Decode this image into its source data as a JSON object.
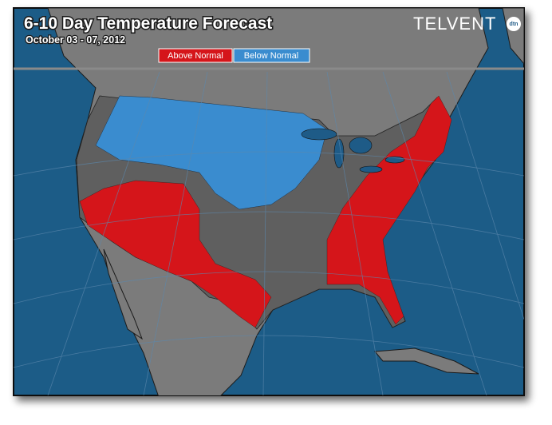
{
  "header": {
    "title": "6-10 Day Temperature Forecast",
    "subtitle": "October 03 - 07, 2012",
    "logo": "TELVENT",
    "logo_badge": "dtn"
  },
  "legend": [
    {
      "label": "Above Normal",
      "color": "#d5151a"
    },
    {
      "label": "Below Normal",
      "color": "#3a8ccf"
    }
  ]
}
